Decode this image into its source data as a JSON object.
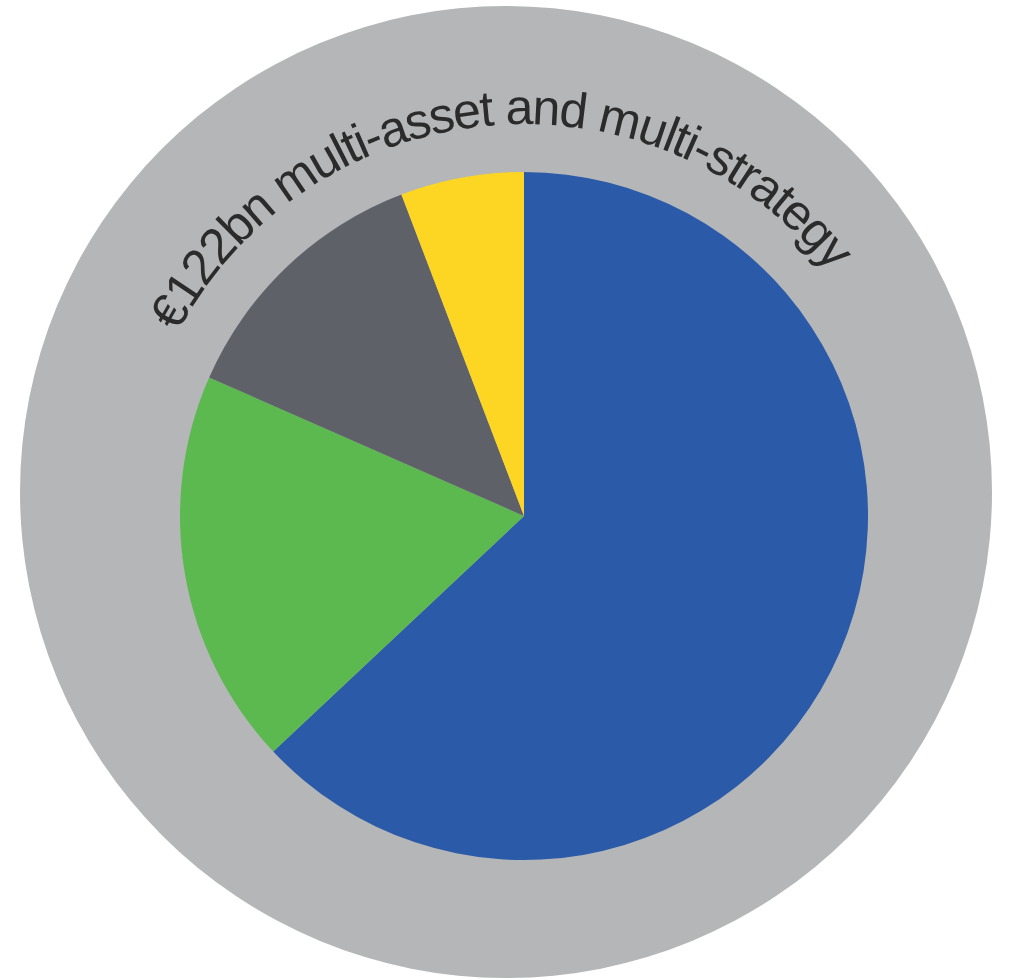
{
  "chart_data": {
    "type": "pie",
    "title": "€122bn multi-asset and multi-strategy",
    "categories": [
      null,
      null,
      null,
      null
    ],
    "values": [
      63,
      18.6,
      12.6,
      5.8
    ],
    "colors": [
      "#2b5aa8",
      "#5cb94f",
      "#5f6169",
      "#fcd622"
    ]
  }
}
